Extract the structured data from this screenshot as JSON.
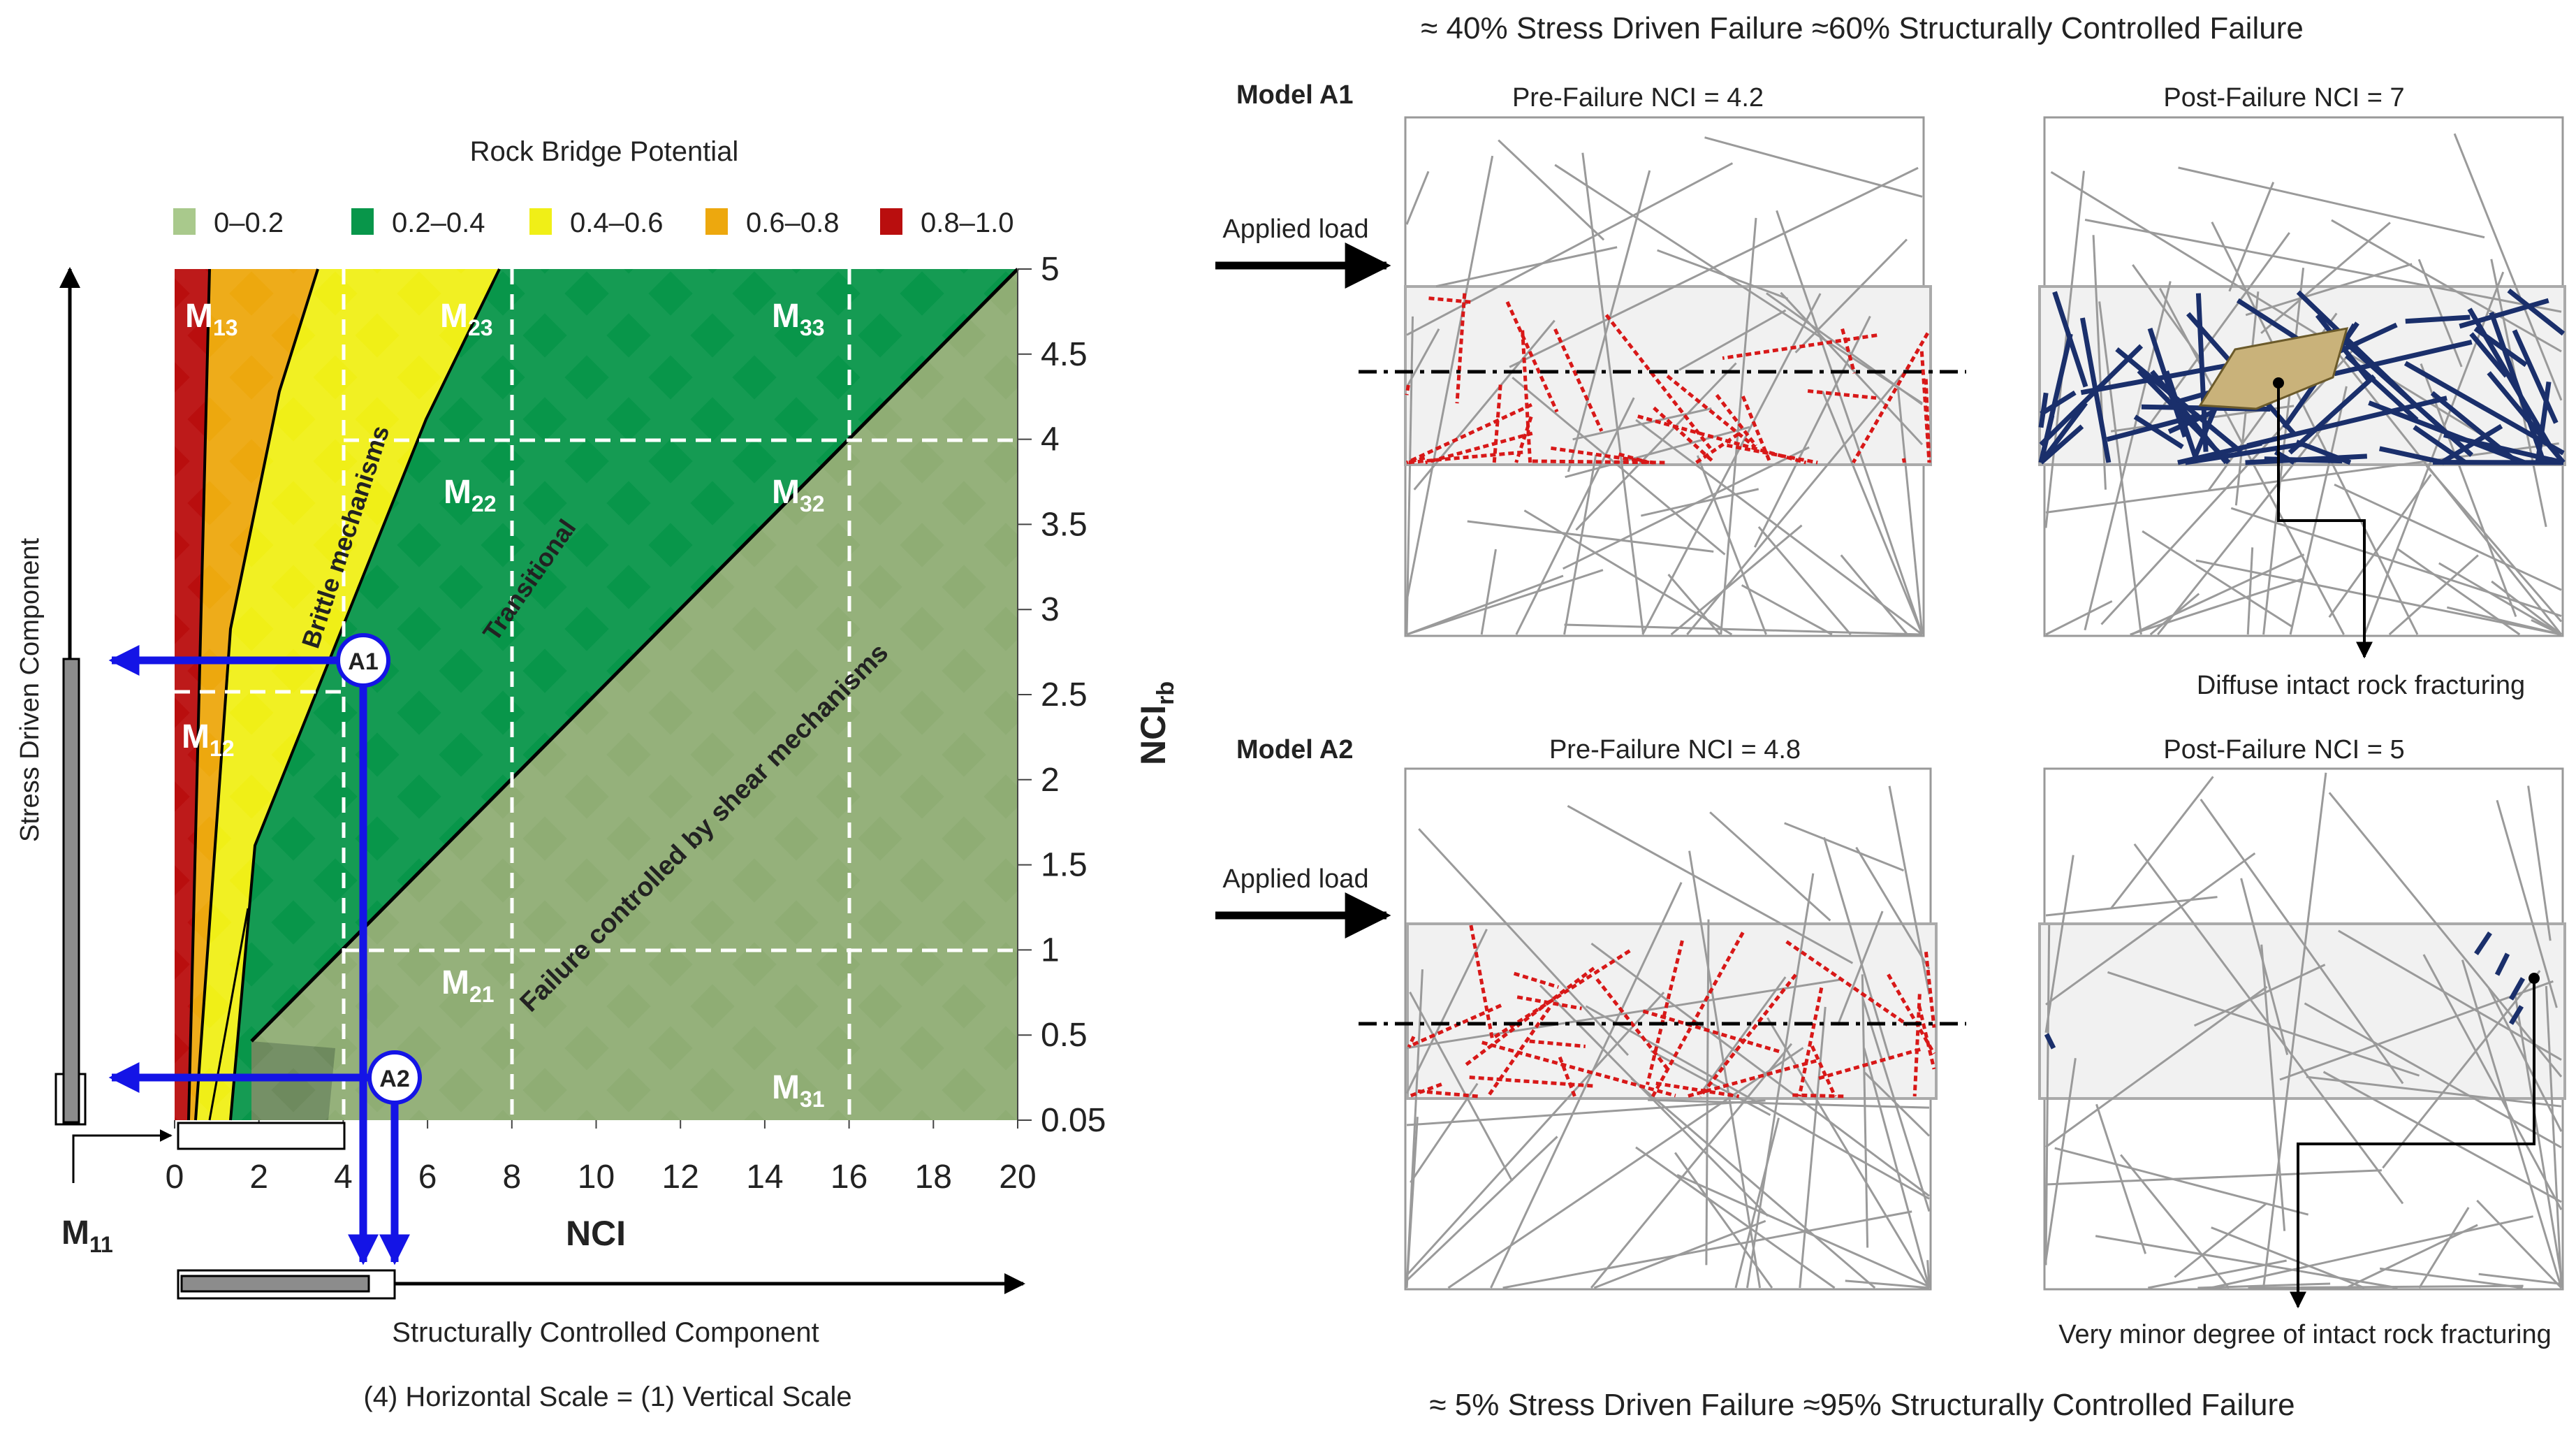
{
  "chart": {
    "title": "Rock Bridge Potential",
    "legend": [
      {
        "label": "0–0.2",
        "color": "#a9c98c"
      },
      {
        "label": "0.2–0.4",
        "color": "#08964a"
      },
      {
        "label": "0.4–0.6",
        "color": "#f0ef17"
      },
      {
        "label": "0.6–0.8",
        "color": "#eda80e"
      },
      {
        "label": "0.8–1.0",
        "color": "#b90e0e"
      }
    ],
    "x_label": "NCI",
    "y_label_main": "NCI",
    "y_label_sub": "rb",
    "x_ticks": [
      "0",
      "2",
      "4",
      "6",
      "8",
      "10",
      "12",
      "14",
      "16",
      "18",
      "20"
    ],
    "y_ticks": [
      "5",
      "4.5",
      "4",
      "3.5",
      "3",
      "2.5",
      "2",
      "1.5",
      "1",
      "0.5",
      "0.05"
    ],
    "regions": [
      {
        "base": "M",
        "sub": "13"
      },
      {
        "base": "M",
        "sub": "23"
      },
      {
        "base": "M",
        "sub": "33"
      },
      {
        "base": "M",
        "sub": "22"
      },
      {
        "base": "M",
        "sub": "32"
      },
      {
        "base": "M",
        "sub": "12"
      },
      {
        "base": "M",
        "sub": "21"
      },
      {
        "base": "M",
        "sub": "31"
      },
      {
        "base": "M",
        "sub": "11"
      }
    ],
    "mechanisms": {
      "brittle": "Brittle mechanisms",
      "transitional": "Transitional",
      "shear": "Failure controlled by shear mechanisms"
    },
    "points": [
      {
        "label": "A1",
        "nci": 4.5,
        "nci_rb": 2.7
      },
      {
        "label": "A2",
        "nci": 5,
        "nci_rb": 0.25
      }
    ],
    "stress_component": "Stress Driven Component",
    "structural_component": "Structurally  Controlled  Component",
    "scale_note": "(4) Horizontal  Scale  = (1) Vertical  Scale"
  },
  "panels": {
    "top_summary": "≈ 40% Stress Driven Failure    ≈60% Structurally Controlled Failure",
    "bottom_summary": "≈ 5% Stress Driven Failure    ≈95% Structurally Controlled Failure",
    "applied_load": "Applied load",
    "model_a1": {
      "title": "Model A1",
      "pre": "Pre-Failure NCI = 4.2",
      "post": "Post-Failure NCI = 7",
      "note": "Diffuse intact rock fracturing"
    },
    "model_a2": {
      "title": "Model A2",
      "pre": "Pre-Failure NCI = 4.8",
      "post": "Post-Failure NCI = 5",
      "note": "Very minor degree of intact rock fracturing"
    }
  }
}
